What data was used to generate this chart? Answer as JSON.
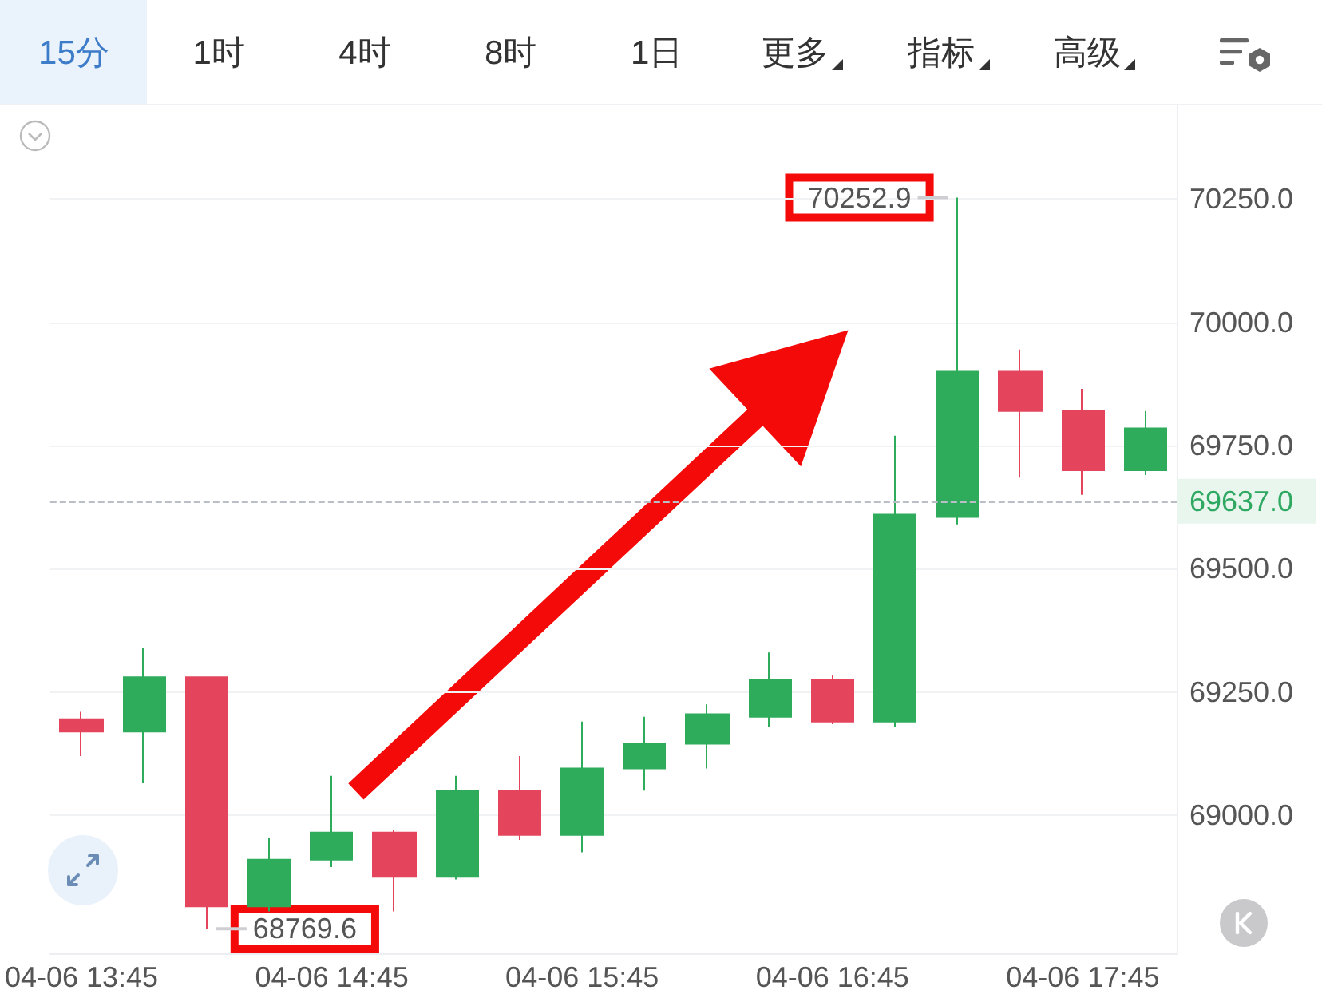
{
  "chart_data": {
    "type": "candlestick",
    "categories": [
      "04-06 13:45",
      null,
      null,
      null,
      "04-06 14:45",
      null,
      null,
      null,
      "04-06 15:45",
      null,
      null,
      null,
      "04-06 16:45",
      null,
      null,
      null,
      "04-06 17:45",
      null
    ],
    "ohlc": [
      [
        69195,
        69210,
        69120,
        69170
      ],
      [
        69170,
        69340,
        69065,
        69280
      ],
      [
        69280,
        69280,
        68769.6,
        68815
      ],
      [
        68815,
        68955,
        68805,
        68910
      ],
      [
        68910,
        69080,
        68895,
        68965
      ],
      [
        68965,
        68970,
        68805,
        68875
      ],
      [
        68875,
        69080,
        68870,
        69050
      ],
      [
        69050,
        69120,
        68950,
        68960
      ],
      [
        68960,
        69190,
        68925,
        69095
      ],
      [
        69095,
        69200,
        69050,
        69145
      ],
      [
        69145,
        69225,
        69095,
        69205
      ],
      [
        69200,
        69330,
        69180,
        69275
      ],
      [
        69275,
        69285,
        69185,
        69190
      ],
      [
        69190,
        69770,
        69180,
        69610
      ],
      [
        69605,
        70252.9,
        69590,
        69900
      ],
      [
        69900,
        69945,
        69685,
        69820
      ],
      [
        69820,
        69865,
        69650,
        69700
      ],
      [
        69700,
        69820,
        69690,
        69785
      ]
    ],
    "colors": [
      "#e4455c",
      "#2eac5b",
      "#e4455c",
      "#2eac5b",
      "#2eac5b",
      "#e4455c",
      "#2eac5b",
      "#e4455c",
      "#2eac5b",
      "#2eac5b",
      "#2eac5b",
      "#2eac5b",
      "#e4455c",
      "#2eac5b",
      "#2eac5b",
      "#e4455c",
      "#e4455c",
      "#2eac5b"
    ],
    "ylim": [
      68720,
      70440
    ],
    "yticks": [
      {
        "value": 69000,
        "label": "69000.0"
      },
      {
        "value": 69250,
        "label": "69250.0"
      },
      {
        "value": 69500,
        "label": "69500.0"
      },
      {
        "value": 69750,
        "label": "69750.0"
      },
      {
        "value": 70000,
        "label": "70000.0"
      },
      {
        "value": 70250,
        "label": "70250.0"
      }
    ],
    "grid": "y",
    "ref_lines": [
      {
        "axis": "y",
        "value": 69637,
        "label": "69637.0",
        "color": "#b9bec7",
        "line_style": "dashed"
      }
    ],
    "annotations": [
      "15分",
      "1时",
      "4时",
      "8时",
      "1日",
      "更多",
      "指标",
      "高级",
      "70252.9",
      "68769.6"
    ]
  }
}
